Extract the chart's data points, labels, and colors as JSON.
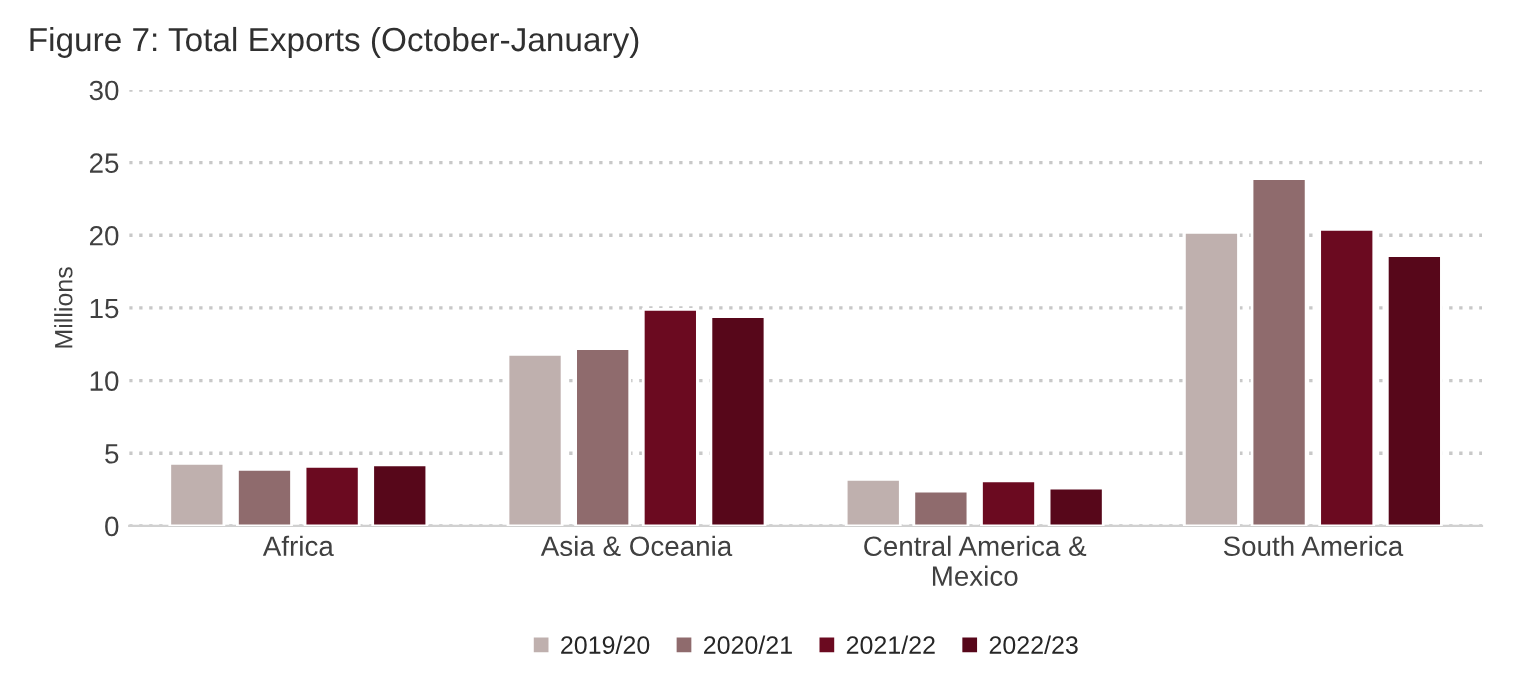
{
  "chart_data": {
    "type": "bar",
    "title": "Figure 7: Total Exports (October-January)",
    "ylabel": "Millions",
    "categories": [
      "Africa",
      "Asia & Oceania",
      "Central America &\nMexico",
      "South America"
    ],
    "series": [
      {
        "name": "2019/20",
        "color": "#bfb0ae",
        "values": [
          4.3,
          11.8,
          3.2,
          20.2
        ]
      },
      {
        "name": "2020/21",
        "color": "#8f6b6d",
        "values": [
          3.9,
          12.2,
          2.4,
          23.9
        ]
      },
      {
        "name": "2021/22",
        "color": "#6b0a20",
        "values": [
          4.1,
          14.9,
          3.1,
          20.4
        ]
      },
      {
        "name": "2022/23",
        "color": "#57071a",
        "values": [
          4.2,
          14.4,
          2.6,
          18.6
        ]
      }
    ],
    "ylim": [
      0,
      30
    ],
    "yticks": [
      0,
      5,
      10,
      15,
      20,
      25,
      30
    ],
    "grid": "y",
    "legend": "bottom"
  }
}
